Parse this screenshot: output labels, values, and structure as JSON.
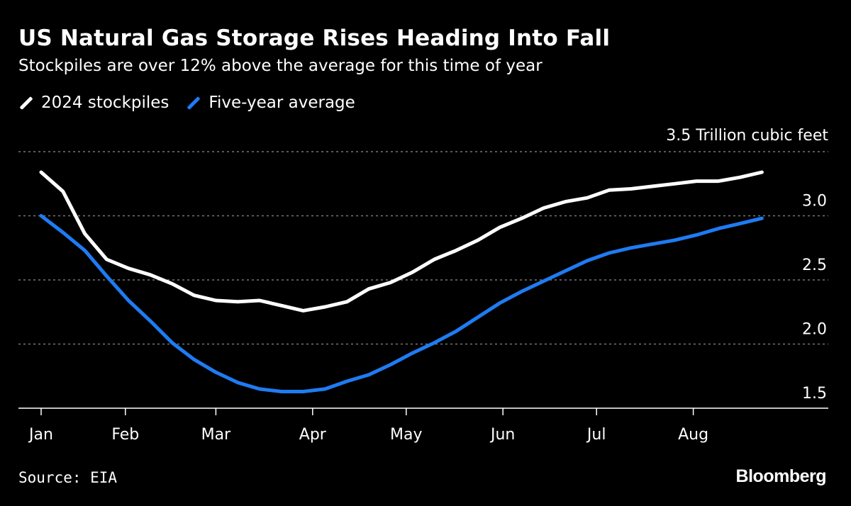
{
  "chart_data": {
    "type": "line",
    "title": "US Natural Gas Storage Rises Heading Into Fall",
    "subtitle": "Stockpiles are over 12% above the average for this time of year",
    "ylabel": "3.5 Trillion cubic feet",
    "ylim": [
      1.5,
      3.5
    ],
    "yticks": [
      "3.0",
      "2.5",
      "2.0",
      "1.5"
    ],
    "ytick_values": [
      3.0,
      2.5,
      2.0,
      1.5
    ],
    "xticks": [
      "Jan",
      "Feb",
      "Mar",
      "Apr",
      "May",
      "Jun",
      "Jul",
      "Aug"
    ],
    "xtick_dates": [
      "2024-01-05",
      "2024-02-01",
      "2024-03-01",
      "2024-04-01",
      "2024-05-01",
      "2024-06-01",
      "2024-07-01",
      "2024-08-01"
    ],
    "grid": true,
    "legend_position": "top-left",
    "x_start": "2024-01-05",
    "x_interval": "weekly",
    "series": [
      {
        "name": "2024 stockpiles",
        "color": "#ffffff",
        "values": [
          3.34,
          3.19,
          2.86,
          2.66,
          2.59,
          2.54,
          2.47,
          2.38,
          2.34,
          2.33,
          2.34,
          2.3,
          2.26,
          2.29,
          2.33,
          2.43,
          2.48,
          2.56,
          2.66,
          2.73,
          2.81,
          2.91,
          2.98,
          3.06,
          3.11,
          3.14,
          3.2,
          3.21,
          3.23,
          3.25,
          3.27,
          3.27,
          3.3,
          3.34
        ]
      },
      {
        "name": "Five-year average",
        "color": "#1f7bf2",
        "values": [
          3.0,
          2.87,
          2.73,
          2.53,
          2.34,
          2.18,
          2.01,
          1.88,
          1.78,
          1.7,
          1.65,
          1.63,
          1.63,
          1.65,
          1.71,
          1.76,
          1.84,
          1.93,
          2.01,
          2.1,
          2.21,
          2.32,
          2.41,
          2.49,
          2.57,
          2.65,
          2.71,
          2.75,
          2.78,
          2.81,
          2.85,
          2.9,
          2.94,
          2.98
        ]
      }
    ]
  },
  "source": "Source: EIA",
  "brand": "Bloomberg"
}
